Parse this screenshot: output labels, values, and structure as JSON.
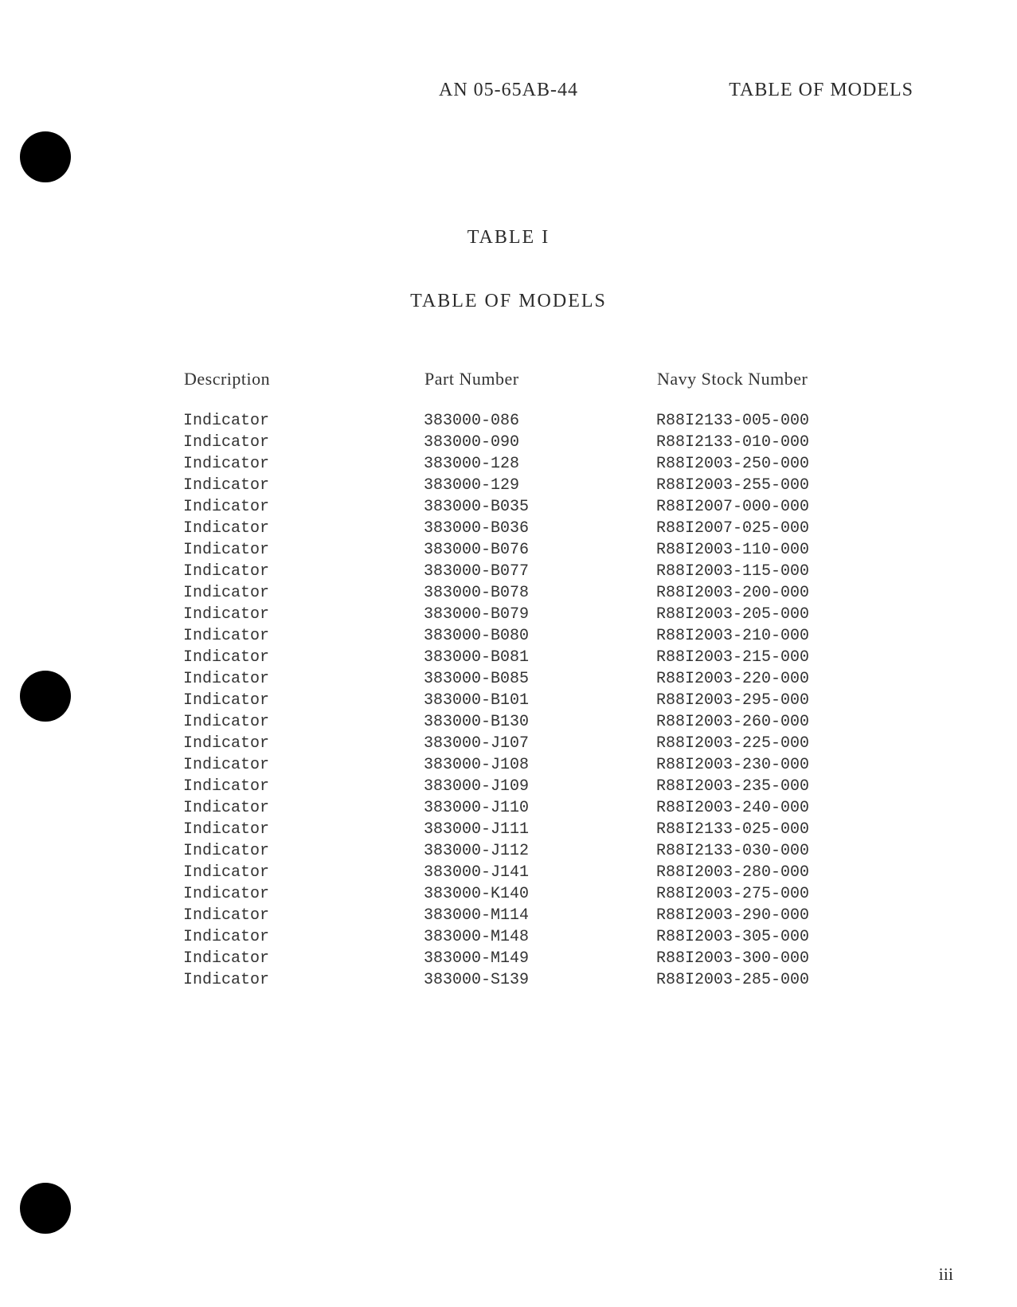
{
  "header": {
    "center": "AN 05-65AB-44",
    "right": "TABLE OF MODELS"
  },
  "title": "TABLE I",
  "subtitle": "TABLE OF MODELS",
  "columns": [
    "Description",
    "Part Number",
    "Navy Stock Number"
  ],
  "rows": [
    [
      "Indicator",
      "383000-086",
      "R88I2133-005-000"
    ],
    [
      "Indicator",
      "383000-090",
      "R88I2133-010-000"
    ],
    [
      "Indicator",
      "383000-128",
      "R88I2003-250-000"
    ],
    [
      "Indicator",
      "383000-129",
      "R88I2003-255-000"
    ],
    [
      "Indicator",
      "383000-B035",
      "R88I2007-000-000"
    ],
    [
      "Indicator",
      "383000-B036",
      "R88I2007-025-000"
    ],
    [
      "Indicator",
      "383000-B076",
      "R88I2003-110-000"
    ],
    [
      "Indicator",
      "383000-B077",
      "R88I2003-115-000"
    ],
    [
      "Indicator",
      "383000-B078",
      "R88I2003-200-000"
    ],
    [
      "Indicator",
      "383000-B079",
      "R88I2003-205-000"
    ],
    [
      "Indicator",
      "383000-B080",
      "R88I2003-210-000"
    ],
    [
      "Indicator",
      "383000-B081",
      "R88I2003-215-000"
    ],
    [
      "Indicator",
      "383000-B085",
      "R88I2003-220-000"
    ],
    [
      "Indicator",
      "383000-B101",
      "R88I2003-295-000"
    ],
    [
      "Indicator",
      "383000-B130",
      "R88I2003-260-000"
    ],
    [
      "Indicator",
      "383000-J107",
      "R88I2003-225-000"
    ],
    [
      "Indicator",
      "383000-J108",
      "R88I2003-230-000"
    ],
    [
      "Indicator",
      "383000-J109",
      "R88I2003-235-000"
    ],
    [
      "Indicator",
      "383000-J110",
      "R88I2003-240-000"
    ],
    [
      "Indicator",
      "383000-J111",
      "R88I2133-025-000"
    ],
    [
      "Indicator",
      "383000-J112",
      "R88I2133-030-000"
    ],
    [
      "Indicator",
      "383000-J141",
      "R88I2003-280-000"
    ],
    [
      "Indicator",
      "383000-K140",
      "R88I2003-275-000"
    ],
    [
      "Indicator",
      "383000-M114",
      "R88I2003-290-000"
    ],
    [
      "Indicator",
      "383000-M148",
      "R88I2003-305-000"
    ],
    [
      "Indicator",
      "383000-M149",
      "R88I2003-300-000"
    ],
    [
      "Indicator",
      "383000-S139",
      "R88I2003-285-000"
    ]
  ],
  "page_number": "iii"
}
